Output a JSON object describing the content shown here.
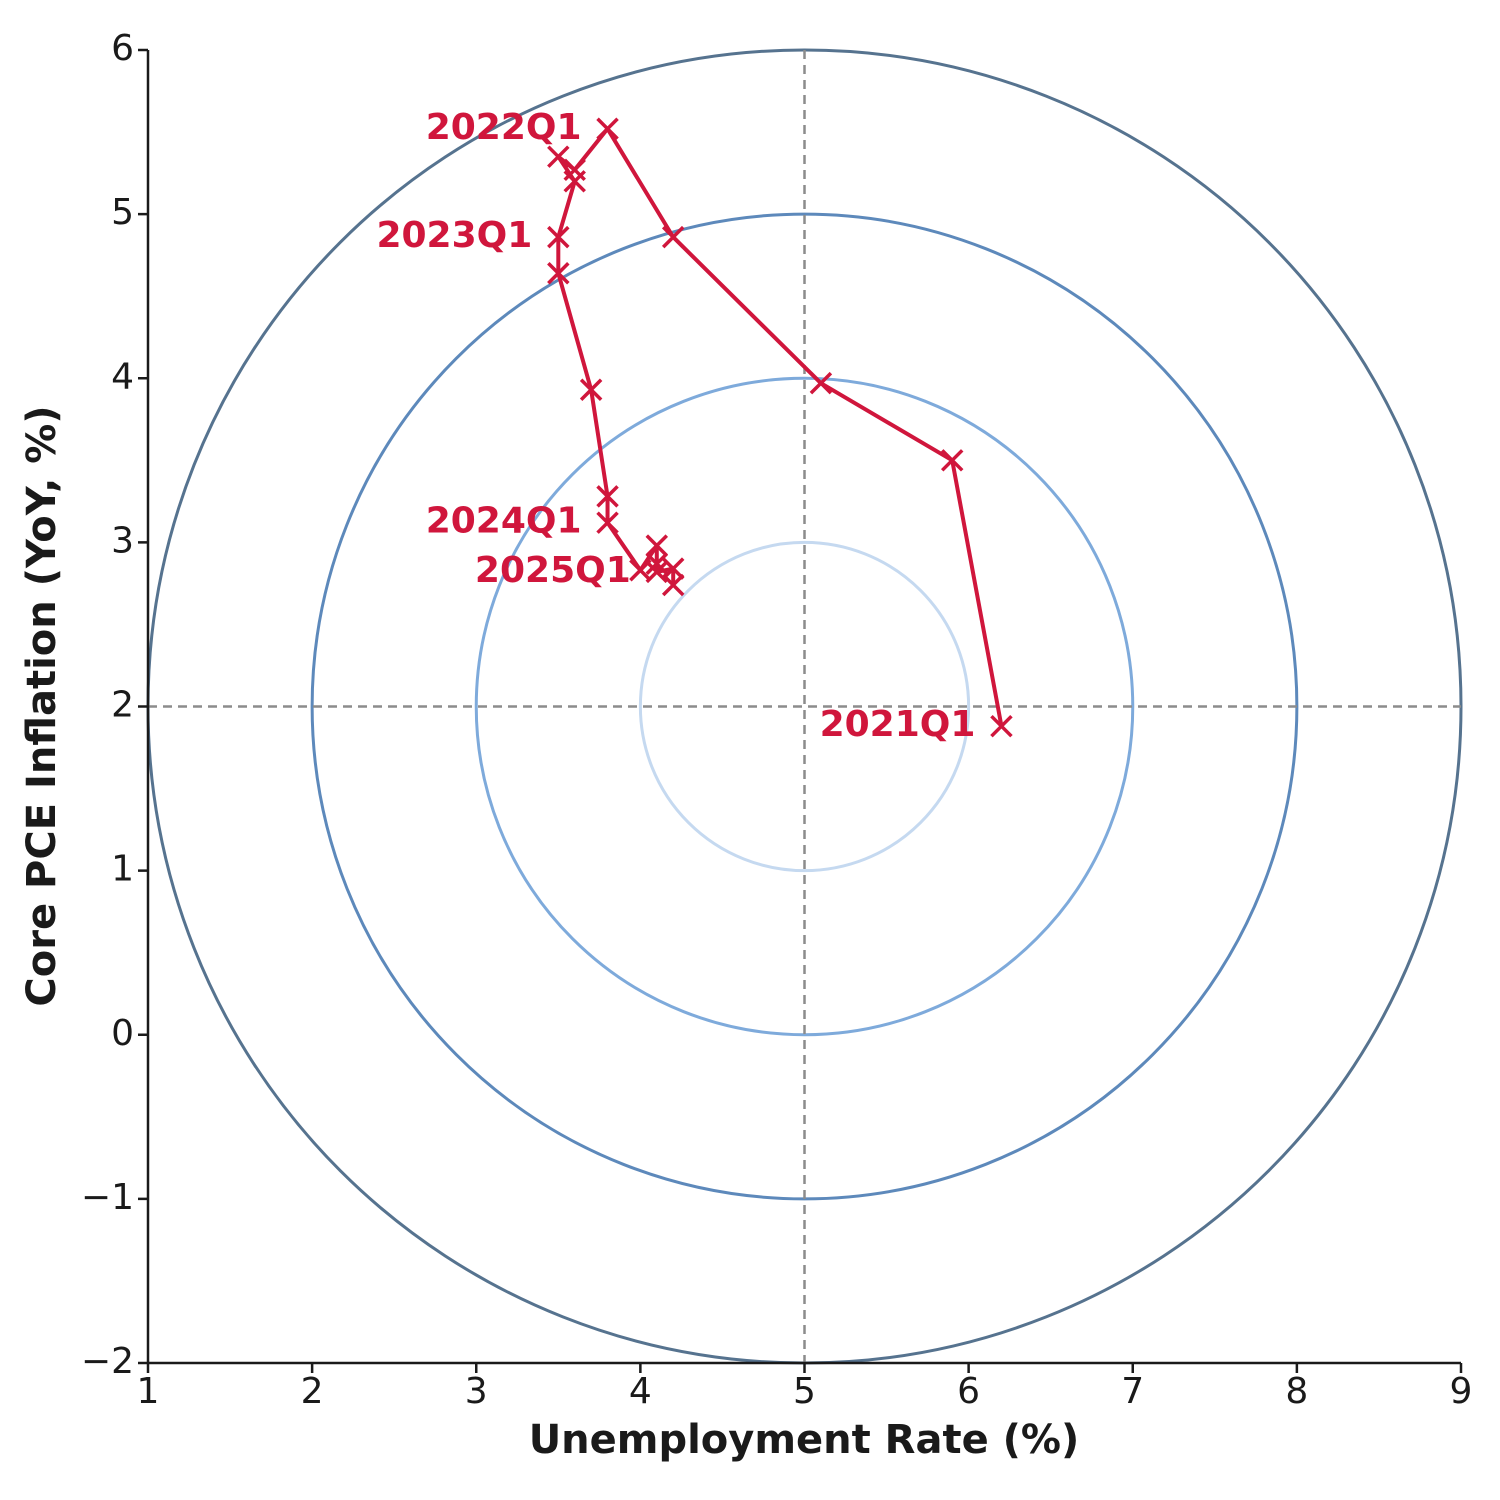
{
  "chart_data": {
    "type": "line",
    "xlabel": "Unemployment Rate (%)",
    "ylabel": "Core PCE Inflation (YoY, %)",
    "xlim": [
      1,
      9
    ],
    "ylim": [
      -2,
      6
    ],
    "xticks": [
      1,
      2,
      3,
      4,
      5,
      6,
      7,
      8,
      9
    ],
    "yticks": [
      {
        "value": -2,
        "label": "−2"
      },
      {
        "value": -1,
        "label": "−1"
      },
      0,
      1,
      2,
      3,
      4,
      5,
      6
    ],
    "reference_lines": {
      "x": 5,
      "y": 2,
      "color": "#8c8c8c"
    },
    "circles": {
      "center": [
        5,
        2
      ],
      "radii": [
        1,
        2,
        3,
        4
      ],
      "colors": [
        "#c5d9f0",
        "#7eaadb",
        "#5d89bb",
        "#56738f"
      ]
    },
    "series": [
      {
        "color": "#d0163c",
        "marker": "x",
        "x": [
          6.2,
          5.9,
          5.1,
          4.2,
          3.8,
          3.6,
          3.5,
          3.6,
          3.5,
          3.5,
          3.7,
          3.8,
          3.8,
          4.0,
          4.1,
          4.1,
          4.1,
          4.2,
          4.2
        ],
        "values": [
          1.88,
          3.5,
          3.97,
          4.86,
          5.52,
          5.27,
          5.35,
          5.2,
          4.86,
          4.64,
          3.93,
          3.28,
          3.12,
          2.83,
          2.98,
          2.87,
          2.82,
          2.84,
          2.74
        ],
        "point_labels": [
          "2021Q1",
          null,
          null,
          null,
          "2022Q1",
          null,
          null,
          null,
          "2023Q1",
          null,
          null,
          null,
          "2024Q1",
          null,
          null,
          null,
          "2025Q1",
          null,
          null
        ]
      }
    ]
  }
}
